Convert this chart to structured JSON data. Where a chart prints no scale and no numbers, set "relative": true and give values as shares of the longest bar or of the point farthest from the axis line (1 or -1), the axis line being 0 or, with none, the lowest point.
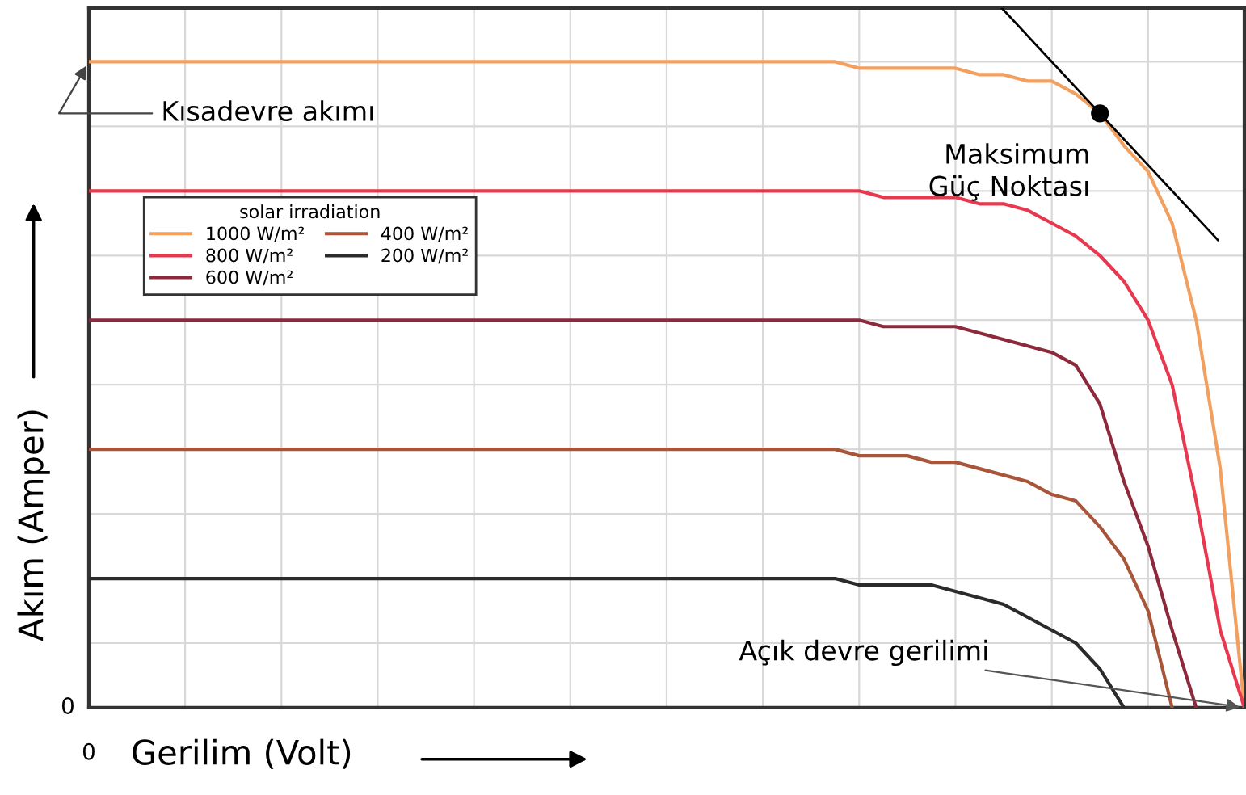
{
  "chart_data": {
    "type": "line",
    "relative": true,
    "xlabel": "Gerilim (Volt)",
    "ylabel": "Akım (Amper)",
    "legend_title": "solar irradiation",
    "legend": "left",
    "grid": true,
    "marker": "none",
    "line_style": "solid",
    "annotations": [
      "Kısadevre akımı",
      "Maksimum Güç Noktası",
      "Açık devre gerilimi",
      "0",
      "0"
    ],
    "categories": [
      null,
      null,
      null,
      null,
      null,
      null,
      null,
      null,
      null,
      null,
      null,
      null,
      null,
      null,
      null,
      null,
      null,
      null,
      null,
      null,
      null,
      null,
      null,
      null,
      null,
      null,
      null,
      null,
      null,
      null,
      null,
      null,
      null,
      null,
      null,
      null,
      null,
      null,
      null,
      null,
      null,
      null,
      null,
      null,
      null,
      null,
      null,
      null,
      null
    ],
    "series": [
      {
        "name": "1000 W/m²",
        "color": "#f2a060",
        "values": [
          1,
          1,
          1,
          1,
          1,
          1,
          1,
          1,
          1,
          1,
          1,
          1,
          1,
          1,
          1,
          1,
          1,
          1,
          1,
          1,
          1,
          1,
          1,
          1,
          1,
          1,
          1,
          1,
          1,
          1,
          1,
          1,
          0.99,
          0.99,
          0.99,
          0.99,
          0.99,
          0.98,
          0.98,
          0.97,
          0.97,
          0.95,
          0.92,
          0.87,
          0.83,
          0.75,
          0.6,
          0.37,
          0
        ]
      },
      {
        "name": "800 W/m²",
        "color": "#e8384f",
        "values": [
          0.8,
          0.8,
          0.8,
          0.8,
          0.8,
          0.8,
          0.8,
          0.8,
          0.8,
          0.8,
          0.8,
          0.8,
          0.8,
          0.8,
          0.8,
          0.8,
          0.8,
          0.8,
          0.8,
          0.8,
          0.8,
          0.8,
          0.8,
          0.8,
          0.8,
          0.8,
          0.8,
          0.8,
          0.8,
          0.8,
          0.8,
          0.8,
          0.8,
          0.79,
          0.79,
          0.79,
          0.79,
          0.78,
          0.78,
          0.77,
          0.75,
          0.73,
          0.7,
          0.66,
          0.6,
          0.5,
          0.32,
          0.12,
          0
        ]
      },
      {
        "name": "600 W/m²",
        "color": "#8c2a3c",
        "values": [
          0.6,
          0.6,
          0.6,
          0.6,
          0.6,
          0.6,
          0.6,
          0.6,
          0.6,
          0.6,
          0.6,
          0.6,
          0.6,
          0.6,
          0.6,
          0.6,
          0.6,
          0.6,
          0.6,
          0.6,
          0.6,
          0.6,
          0.6,
          0.6,
          0.6,
          0.6,
          0.6,
          0.6,
          0.6,
          0.6,
          0.6,
          0.6,
          0.6,
          0.59,
          0.59,
          0.59,
          0.59,
          0.58,
          0.57,
          0.56,
          0.55,
          0.53,
          0.47,
          0.35,
          0.25,
          0.12,
          0,
          null,
          null
        ]
      },
      {
        "name": "400 W/m²",
        "color": "#a8553a",
        "values": [
          0.4,
          0.4,
          0.4,
          0.4,
          0.4,
          0.4,
          0.4,
          0.4,
          0.4,
          0.4,
          0.4,
          0.4,
          0.4,
          0.4,
          0.4,
          0.4,
          0.4,
          0.4,
          0.4,
          0.4,
          0.4,
          0.4,
          0.4,
          0.4,
          0.4,
          0.4,
          0.4,
          0.4,
          0.4,
          0.4,
          0.4,
          0.4,
          0.39,
          0.39,
          0.39,
          0.38,
          0.38,
          0.37,
          0.36,
          0.35,
          0.33,
          0.32,
          0.28,
          0.23,
          0.15,
          0,
          null,
          null,
          null
        ]
      },
      {
        "name": "200 W/m²",
        "color": "#2b2b2b",
        "values": [
          0.2,
          0.2,
          0.2,
          0.2,
          0.2,
          0.2,
          0.2,
          0.2,
          0.2,
          0.2,
          0.2,
          0.2,
          0.2,
          0.2,
          0.2,
          0.2,
          0.2,
          0.2,
          0.2,
          0.2,
          0.2,
          0.2,
          0.2,
          0.2,
          0.2,
          0.2,
          0.2,
          0.2,
          0.2,
          0.2,
          0.2,
          0.2,
          0.19,
          0.19,
          0.19,
          0.19,
          0.18,
          0.17,
          0.16,
          0.14,
          0.12,
          0.1,
          0.06,
          0,
          null,
          null,
          null,
          null,
          null
        ]
      }
    ]
  }
}
